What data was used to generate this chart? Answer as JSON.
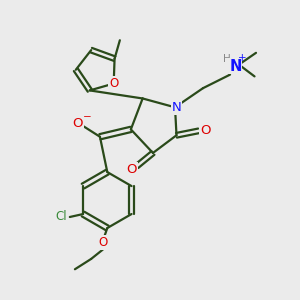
{
  "background_color": "#ebebeb",
  "figsize": [
    3.0,
    3.0
  ],
  "dpi": 100,
  "bond_color": "#2a4a1a",
  "N_color": "#1414ff",
  "O_color": "#dd0000",
  "Cl_color": "#3a8a3a",
  "H_color": "#888888",
  "line_width": 1.6,
  "font_size": 8.5,
  "xlim": [
    0,
    10
  ],
  "ylim": [
    0,
    10
  ]
}
